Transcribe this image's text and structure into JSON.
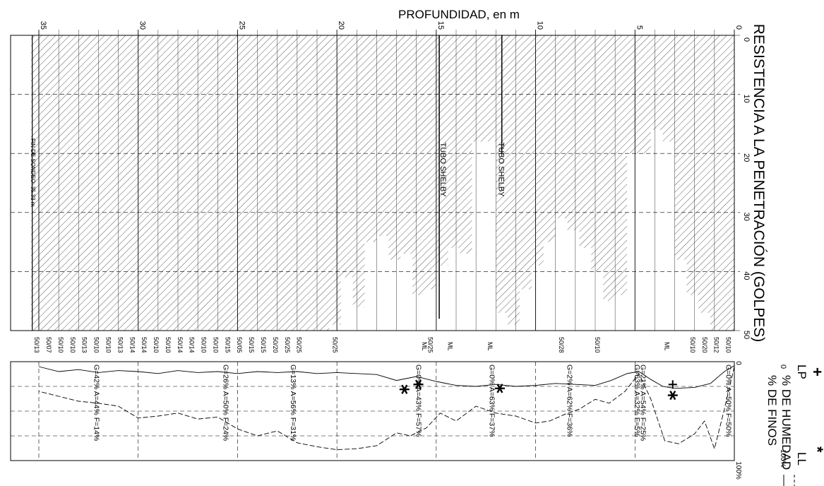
{
  "header": {
    "depth_title": "PROFUNDIDAD, en m",
    "spt_title": "RESISTENCIA A LA PENETRACIÓN (GOLPES)",
    "humidity_title": "% DE HUMEDAD",
    "fines_title": "% DE FINOS",
    "legend_lp_symbol": "+",
    "legend_lp_label": "LP",
    "legend_ll_symbol": "*",
    "legend_ll_label": "LL",
    "legend_zero": "0",
    "legend_hundred": "100%"
  },
  "depth_ticks": [
    "0",
    "5",
    "10",
    "15",
    "20",
    "25",
    "30",
    "35"
  ],
  "spt_ticks": [
    "0",
    "10",
    "20",
    "30",
    "40",
    "50"
  ],
  "fines_ticks": [
    "0",
    "100%"
  ],
  "samples": [
    {
      "depth": 0.3,
      "blows_label": "50/10",
      "blows": 50
    },
    {
      "depth": 0.9,
      "blows_label": "50/12",
      "blows": 50
    },
    {
      "depth": 1.5,
      "blows_label": "50/20",
      "blows": 47
    },
    {
      "depth": 2.1,
      "blows_label": "50/10",
      "blows": 44
    },
    {
      "depth": 2.7,
      "blows_label": "",
      "blows": 38
    },
    {
      "depth": 3.3,
      "blows_label": "",
      "blows": 18
    },
    {
      "depth": 3.9,
      "blows_label": "",
      "blows": 16
    },
    {
      "depth": 4.5,
      "blows_label": "",
      "blows": 20
    },
    {
      "depth": 5.1,
      "blows_label": "",
      "blows": 20
    },
    {
      "depth": 5.7,
      "blows_label": "",
      "blows": 44
    },
    {
      "depth": 6.3,
      "blows_label": "",
      "blows": 45
    },
    {
      "depth": 6.9,
      "blows_label": "50/10",
      "blows": 40
    },
    {
      "depth": 7.5,
      "blows_label": "",
      "blows": 36
    },
    {
      "depth": 8.1,
      "blows_label": "",
      "blows": 33
    },
    {
      "depth": 8.7,
      "blows_label": "50/28",
      "blows": 31
    },
    {
      "depth": 9.3,
      "blows_label": "",
      "blows": 35
    },
    {
      "depth": 9.9,
      "blows_label": "",
      "blows": 39
    },
    {
      "depth": 10.5,
      "blows_label": "",
      "blows": 43
    },
    {
      "depth": 11.1,
      "blows_label": "",
      "blows": 49
    },
    {
      "depth": 11.7,
      "blows_label": "",
      "blows": 47
    },
    {
      "depth": 12.3,
      "blows_label": "",
      "blows": 18
    },
    {
      "depth": 12.9,
      "blows_label": "",
      "blows": 18
    },
    {
      "depth": 13.5,
      "blows_label": "",
      "blows": 37
    },
    {
      "depth": 14.1,
      "blows_label": "",
      "blows": 36
    },
    {
      "depth": 14.7,
      "blows_label": "",
      "blows": 39
    },
    {
      "depth": 15.3,
      "blows_label": "50/25",
      "blows": 43
    },
    {
      "depth": 15.9,
      "blows_label": "",
      "blows": 44
    },
    {
      "depth": 16.5,
      "blows_label": "",
      "blows": 37
    },
    {
      "depth": 17.1,
      "blows_label": "",
      "blows": 38
    },
    {
      "depth": 17.7,
      "blows_label": "",
      "blows": 34
    },
    {
      "depth": 18.3,
      "blows_label": "",
      "blows": 35
    },
    {
      "depth": 18.9,
      "blows_label": "",
      "blows": 46
    },
    {
      "depth": 19.5,
      "blows_label": "",
      "blows": 41
    },
    {
      "depth": 20.1,
      "blows_label": "50/25",
      "blows": 49
    },
    {
      "depth": 20.7,
      "blows_label": "",
      "blows": 50
    },
    {
      "depth": 21.3,
      "blows_label": "",
      "blows": 50
    },
    {
      "depth": 21.9,
      "blows_label": "50/25",
      "blows": 50
    },
    {
      "depth": 22.5,
      "blows_label": "50/25",
      "blows": 50
    },
    {
      "depth": 23.1,
      "blows_label": "50/20",
      "blows": 50
    },
    {
      "depth": 23.7,
      "blows_label": "50/15",
      "blows": 50
    },
    {
      "depth": 24.3,
      "blows_label": "50/15",
      "blows": 50
    },
    {
      "depth": 24.9,
      "blows_label": "50/05",
      "blows": 50
    },
    {
      "depth": 25.5,
      "blows_label": "50/15",
      "blows": 50
    },
    {
      "depth": 26.1,
      "blows_label": "50/10",
      "blows": 50
    },
    {
      "depth": 26.7,
      "blows_label": "50/10",
      "blows": 50
    },
    {
      "depth": 27.3,
      "blows_label": "50/14",
      "blows": 50
    },
    {
      "depth": 27.9,
      "blows_label": "50/14",
      "blows": 50
    },
    {
      "depth": 28.5,
      "blows_label": "50/10",
      "blows": 50
    },
    {
      "depth": 29.1,
      "blows_label": "50/10",
      "blows": 50
    },
    {
      "depth": 29.7,
      "blows_label": "50/14",
      "blows": 50
    },
    {
      "depth": 30.3,
      "blows_label": "50/14",
      "blows": 50
    },
    {
      "depth": 30.9,
      "blows_label": "50/13",
      "blows": 50
    },
    {
      "depth": 31.5,
      "blows_label": "50/10",
      "blows": 50
    },
    {
      "depth": 32.1,
      "blows_label": "50/10",
      "blows": 50
    },
    {
      "depth": 32.7,
      "blows_label": "50/13",
      "blows": 50
    },
    {
      "depth": 33.3,
      "blows_label": "50/10",
      "blows": 50
    },
    {
      "depth": 33.9,
      "blows_label": "50/10",
      "blows": 50
    },
    {
      "depth": 34.5,
      "blows_label": "50/07",
      "blows": 50
    },
    {
      "depth": 35.1,
      "blows_label": "50/13",
      "blows": 50
    }
  ],
  "shelby": [
    {
      "label": "TUBO SHELBY",
      "depth_from": 11.7,
      "depth_to": 12.3,
      "blows": 20
    },
    {
      "label": "TUBO SHELBY",
      "depth_from": 14.85,
      "depth_to": 15.0,
      "blows": 48
    }
  ],
  "end_note": "FIN DE SONDEO: 35.33 m",
  "end_depth": 35.33,
  "classifications": [
    {
      "depth": 3.4,
      "label": "ML"
    },
    {
      "depth": 12.3,
      "label": "ML"
    },
    {
      "depth": 14.3,
      "label": "ML"
    },
    {
      "depth": 15.6,
      "label": "ML"
    }
  ],
  "granulometry": [
    {
      "depth": 0.3,
      "label": "G=0% A=50% F=50%"
    },
    {
      "depth": 4.6,
      "label": "G=21% A=54% F=25%"
    },
    {
      "depth": 4.9,
      "label": "G=63% A=32% F=5%"
    },
    {
      "depth": 8.3,
      "label": "G=2% A=62% F=36%"
    },
    {
      "depth": 12.2,
      "label": "G=0% A=63% F=37%"
    },
    {
      "depth": 15.9,
      "label": "G=0% A=43% F=57%"
    },
    {
      "depth": 22.2,
      "label": "G=13% A=56% F=31%"
    },
    {
      "depth": 25.6,
      "label": "G=26% A=50% F=24%"
    },
    {
      "depth": 32.1,
      "label": "G=42% A=44% F=14%"
    }
  ],
  "humidity_curve": [
    {
      "depth": 0.0,
      "value": 4
    },
    {
      "depth": 0.5,
      "value": 10
    },
    {
      "depth": 1.2,
      "value": 22
    },
    {
      "depth": 2.0,
      "value": 26
    },
    {
      "depth": 3.0,
      "value": 27
    },
    {
      "depth": 3.6,
      "value": 25
    },
    {
      "depth": 4.2,
      "value": 18
    },
    {
      "depth": 4.8,
      "value": 10
    },
    {
      "depth": 5.4,
      "value": 12
    },
    {
      "depth": 6.2,
      "value": 19
    },
    {
      "depth": 7.0,
      "value": 24
    },
    {
      "depth": 8.0,
      "value": 23
    },
    {
      "depth": 9.0,
      "value": 22
    },
    {
      "depth": 10.0,
      "value": 24
    },
    {
      "depth": 11.0,
      "value": 25
    },
    {
      "depth": 12.0,
      "value": 23
    },
    {
      "depth": 13.0,
      "value": 25
    },
    {
      "depth": 14.0,
      "value": 24
    },
    {
      "depth": 15.0,
      "value": 20
    },
    {
      "depth": 16.0,
      "value": 15
    },
    {
      "depth": 17.0,
      "value": 19
    },
    {
      "depth": 18.0,
      "value": 13
    },
    {
      "depth": 19.0,
      "value": 12
    },
    {
      "depth": 20.0,
      "value": 11
    },
    {
      "depth": 21.0,
      "value": 12
    },
    {
      "depth": 22.0,
      "value": 10
    },
    {
      "depth": 23.0,
      "value": 11
    },
    {
      "depth": 24.0,
      "value": 10
    },
    {
      "depth": 25.0,
      "value": 12
    },
    {
      "depth": 26.0,
      "value": 10
    },
    {
      "depth": 27.0,
      "value": 11
    },
    {
      "depth": 28.0,
      "value": 9
    },
    {
      "depth": 29.0,
      "value": 12
    },
    {
      "depth": 30.0,
      "value": 10
    },
    {
      "depth": 31.0,
      "value": 9
    },
    {
      "depth": 32.0,
      "value": 11
    },
    {
      "depth": 33.0,
      "value": 8
    },
    {
      "depth": 34.0,
      "value": 10
    },
    {
      "depth": 35.0,
      "value": 5
    }
  ],
  "fines_curve": [
    {
      "depth": 0.0,
      "value": 5
    },
    {
      "depth": 0.5,
      "value": 48
    },
    {
      "depth": 1.0,
      "value": 88
    },
    {
      "depth": 1.5,
      "value": 60
    },
    {
      "depth": 2.0,
      "value": 73
    },
    {
      "depth": 2.8,
      "value": 83
    },
    {
      "depth": 3.5,
      "value": 80
    },
    {
      "depth": 4.2,
      "value": 38
    },
    {
      "depth": 4.8,
      "value": 12
    },
    {
      "depth": 5.5,
      "value": 30
    },
    {
      "depth": 6.3,
      "value": 42
    },
    {
      "depth": 7.0,
      "value": 38
    },
    {
      "depth": 7.8,
      "value": 48
    },
    {
      "depth": 8.5,
      "value": 53
    },
    {
      "depth": 9.3,
      "value": 60
    },
    {
      "depth": 10.0,
      "value": 62
    },
    {
      "depth": 11.0,
      "value": 55
    },
    {
      "depth": 12.0,
      "value": 52
    },
    {
      "depth": 13.0,
      "value": 45
    },
    {
      "depth": 14.0,
      "value": 60
    },
    {
      "depth": 14.8,
      "value": 52
    },
    {
      "depth": 15.5,
      "value": 67
    },
    {
      "depth": 16.3,
      "value": 75
    },
    {
      "depth": 17.0,
      "value": 72
    },
    {
      "depth": 18.0,
      "value": 85
    },
    {
      "depth": 19.0,
      "value": 88
    },
    {
      "depth": 20.0,
      "value": 89
    },
    {
      "depth": 21.0,
      "value": 86
    },
    {
      "depth": 22.0,
      "value": 82
    },
    {
      "depth": 23.0,
      "value": 70
    },
    {
      "depth": 24.0,
      "value": 75
    },
    {
      "depth": 25.0,
      "value": 68
    },
    {
      "depth": 26.0,
      "value": 56
    },
    {
      "depth": 27.0,
      "value": 58
    },
    {
      "depth": 28.0,
      "value": 52
    },
    {
      "depth": 29.0,
      "value": 55
    },
    {
      "depth": 30.0,
      "value": 57
    },
    {
      "depth": 31.0,
      "value": 45
    },
    {
      "depth": 32.0,
      "value": 42
    },
    {
      "depth": 33.0,
      "value": 40
    },
    {
      "depth": 34.0,
      "value": 35
    },
    {
      "depth": 35.0,
      "value": 30
    }
  ],
  "lp_points": [
    {
      "depth": 3.1,
      "value": 23
    }
  ],
  "ll_points": [
    {
      "depth": 3.1,
      "value": 34
    },
    {
      "depth": 11.8,
      "value": 27
    },
    {
      "depth": 15.9,
      "value": 23
    },
    {
      "depth": 16.6,
      "value": 28
    }
  ]
}
